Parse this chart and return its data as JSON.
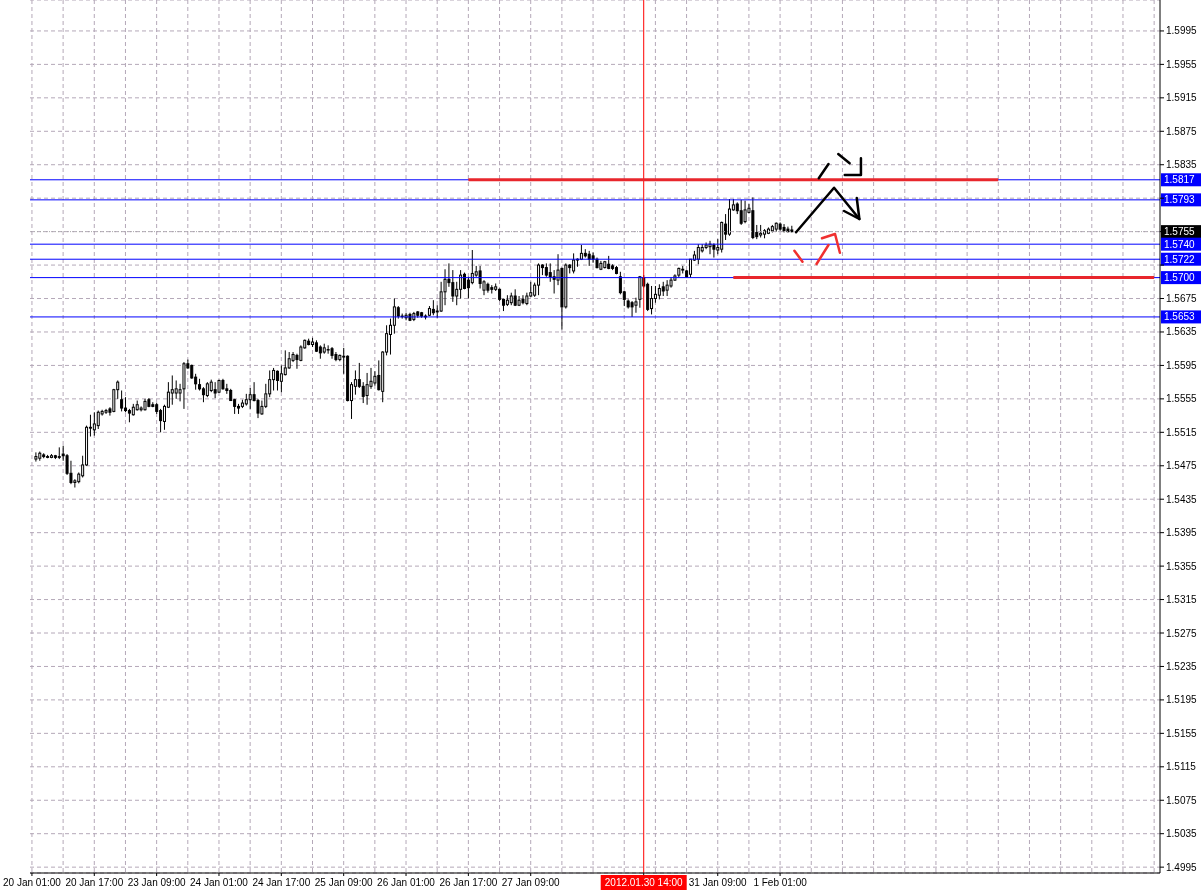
{
  "chart_data": {
    "type": "candlestick",
    "categories": [
      "20 Jan 01:00",
      null,
      null,
      null,
      null,
      null,
      null,
      null,
      null,
      null,
      null,
      null,
      null,
      null,
      null,
      null,
      "20 Jan 17:00",
      null,
      null,
      null,
      null,
      null,
      null,
      null,
      null,
      null,
      null,
      null,
      null,
      null,
      null,
      null,
      "23 Jan 09:00",
      null,
      null,
      null,
      null,
      null,
      null,
      null,
      null,
      null,
      null,
      null,
      null,
      null,
      null,
      null,
      "24 Jan 01:00",
      null,
      null,
      null,
      null,
      null,
      null,
      null,
      null,
      null,
      null,
      null,
      null,
      null,
      null,
      null,
      "24 Jan 17:00",
      null,
      null,
      null,
      null,
      null,
      null,
      null,
      null,
      null,
      null,
      null,
      null,
      null,
      null,
      null,
      "25 Jan 09:00",
      null,
      null,
      null,
      null,
      null,
      null,
      null,
      null,
      null,
      null,
      null,
      null,
      null,
      null,
      null,
      "26 Jan 01:00",
      null,
      null,
      null,
      null,
      null,
      null,
      null,
      null,
      null,
      null,
      null,
      null,
      null,
      null,
      null,
      "26 Jan 17:00",
      null,
      null,
      null,
      null,
      null,
      null,
      null,
      null,
      null,
      null,
      null,
      null,
      null,
      null,
      null,
      "27 Jan 09:00",
      null,
      null,
      null,
      null,
      null,
      null,
      null,
      null,
      null,
      null,
      null,
      null,
      null,
      null,
      null,
      null,
      null,
      null,
      null,
      null,
      null,
      null,
      null,
      null,
      null,
      null,
      null,
      null,
      "2012.01.30 14:00",
      null,
      null,
      null,
      null,
      null,
      null,
      null,
      null,
      null,
      null,
      null,
      null,
      null,
      null,
      null,
      null,
      null,
      null,
      "31 Jan 09:00",
      null,
      null,
      null,
      null,
      null,
      null,
      null,
      null,
      null,
      null,
      null,
      null,
      null,
      null,
      null,
      "1 Feb 01:00",
      null,
      null,
      null,
      null,
      null,
      null,
      null,
      null,
      null,
      null,
      null,
      null,
      null,
      null,
      null,
      null,
      null,
      null,
      null,
      null,
      null,
      null,
      null,
      null,
      null,
      null,
      null,
      null,
      null,
      null,
      null,
      null,
      null,
      null,
      null,
      null,
      null,
      null,
      null,
      null,
      null,
      null,
      null,
      null,
      null,
      null,
      null,
      null,
      null,
      null,
      null,
      null,
      null,
      null,
      null,
      null,
      null,
      null,
      null,
      null,
      null,
      null,
      null,
      null,
      null,
      null,
      null,
      null,
      null,
      null,
      null,
      null,
      null,
      null,
      null,
      null,
      null,
      null,
      null,
      null,
      null,
      null,
      null,
      null,
      null,
      null,
      null,
      null,
      null,
      null,
      null,
      null,
      null,
      null,
      null,
      null,
      null
    ],
    "ohlc": [
      null,
      [
        1.5483,
        1.5491,
        1.548,
        1.5486
      ],
      [
        1.5484,
        1.5492,
        1.5481,
        1.549
      ],
      [
        1.5488,
        1.549,
        1.5484,
        1.5486
      ],
      [
        1.5486,
        1.5488,
        1.5484,
        1.5485
      ],
      [
        1.5485,
        1.5489,
        1.5484,
        1.5487
      ],
      [
        1.5487,
        1.5488,
        1.5483,
        1.5485
      ],
      [
        1.5485,
        1.5497,
        1.5483,
        1.5486
      ],
      [
        1.5489,
        1.5499,
        1.5481,
        1.5487
      ],
      [
        1.5487,
        1.5489,
        1.5464,
        1.5466
      ],
      [
        1.5466,
        1.5481,
        1.5453,
        1.5455
      ],
      [
        1.5455,
        1.5459,
        1.5449,
        1.5457
      ],
      [
        1.5456,
        1.5467,
        1.5454,
        1.5465
      ],
      [
        1.5463,
        1.5487,
        1.5461,
        1.5476
      ],
      [
        1.5476,
        1.5523,
        1.5475,
        1.5521
      ],
      [
        1.5521,
        1.5536,
        1.551,
        1.552
      ],
      [
        1.5518,
        1.5539,
        1.5511,
        1.5525
      ],
      [
        1.5523,
        1.5541,
        1.5519,
        1.5539
      ],
      [
        1.5537,
        1.5542,
        1.5535,
        1.554
      ],
      [
        1.5539,
        1.5543,
        1.5537,
        1.5541
      ],
      [
        1.5543,
        1.5545,
        1.5535,
        1.5539
      ],
      [
        1.554,
        1.5567,
        1.5539,
        1.5566
      ],
      [
        1.5566,
        1.5577,
        1.5555,
        1.5575
      ],
      [
        1.5554,
        1.5565,
        1.554,
        1.5544
      ],
      [
        1.5544,
        1.5557,
        1.5539,
        1.5541
      ],
      [
        1.5541,
        1.5543,
        1.5527,
        1.5538
      ],
      [
        1.5536,
        1.5549,
        1.5535,
        1.5545
      ],
      [
        1.5542,
        1.5553,
        1.5541,
        1.5548
      ],
      [
        1.5542,
        1.5546,
        1.554,
        1.5544
      ],
      [
        1.5542,
        1.5555,
        1.5541,
        1.5552
      ],
      [
        1.5554,
        1.5556,
        1.5545,
        1.5546
      ],
      [
        1.5548,
        1.5551,
        1.5545,
        1.5546
      ],
      [
        1.5548,
        1.555,
        1.5537,
        1.554
      ],
      [
        1.5541,
        1.5543,
        1.5515,
        1.5529
      ],
      [
        1.5528,
        1.5548,
        1.5518,
        1.5546
      ],
      [
        1.5545,
        1.5575,
        1.5544,
        1.5563
      ],
      [
        1.5562,
        1.5583,
        1.5548,
        1.5566
      ],
      [
        1.5562,
        1.5577,
        1.5555,
        1.5567
      ],
      [
        1.5562,
        1.5573,
        1.5552,
        1.5566
      ],
      [
        1.5567,
        1.5599,
        1.5543,
        1.5597
      ],
      [
        1.5597,
        1.5602,
        1.5591,
        1.5592
      ],
      [
        1.5595,
        1.5596,
        1.5579,
        1.558
      ],
      [
        1.5581,
        1.5585,
        1.5566,
        1.5573
      ],
      [
        1.5572,
        1.5579,
        1.5565,
        1.5567
      ],
      [
        1.5567,
        1.5569,
        1.5551,
        1.556
      ],
      [
        1.5559,
        1.5575,
        1.5557,
        1.5573
      ],
      [
        1.5565,
        1.5578,
        1.5563,
        1.5575
      ],
      [
        1.5566,
        1.5575,
        1.5556,
        1.5562
      ],
      [
        1.5563,
        1.5578,
        1.5562,
        1.5577
      ],
      [
        1.5577,
        1.5579,
        1.5566,
        1.5567
      ],
      [
        1.5567,
        1.5573,
        1.5561,
        1.5565
      ],
      [
        1.5565,
        1.5567,
        1.5553,
        1.5553
      ],
      [
        1.5554,
        1.5555,
        1.5537,
        1.5546
      ],
      [
        1.5546,
        1.5549,
        1.5537,
        1.5544
      ],
      [
        1.5546,
        1.5554,
        1.5544,
        1.555
      ],
      [
        1.5549,
        1.5561,
        1.5547,
        1.5554
      ],
      [
        1.5554,
        1.5568,
        1.5543,
        1.556
      ],
      [
        1.556,
        1.5575,
        1.5552,
        1.5553
      ],
      [
        1.5553,
        1.5555,
        1.5532,
        1.5538
      ],
      [
        1.5537,
        1.5553,
        1.5536,
        1.5546
      ],
      [
        1.5546,
        1.5573,
        1.5544,
        1.5561
      ],
      [
        1.5561,
        1.5589,
        1.5557,
        1.5578
      ],
      [
        1.5578,
        1.5592,
        1.5565,
        1.5589
      ],
      [
        1.5588,
        1.5589,
        1.5565,
        1.5577
      ],
      [
        1.5576,
        1.5595,
        1.5563,
        1.5585
      ],
      [
        1.5584,
        1.5613,
        1.5583,
        1.5592
      ],
      [
        1.5592,
        1.5611,
        1.5591,
        1.5603
      ],
      [
        1.5601,
        1.5611,
        1.5599,
        1.5608
      ],
      [
        1.5607,
        1.5609,
        1.5591,
        1.5602
      ],
      [
        1.5601,
        1.5619,
        1.56,
        1.5617
      ],
      [
        1.5616,
        1.5626,
        1.5615,
        1.5625
      ],
      [
        1.5624,
        1.5627,
        1.5619,
        1.562
      ],
      [
        1.562,
        1.5628,
        1.5617,
        1.5623
      ],
      [
        1.5622,
        1.5625,
        1.5611,
        1.5612
      ],
      [
        1.5617,
        1.5619,
        1.5603,
        1.561
      ],
      [
        1.5611,
        1.5621,
        1.5609,
        1.5616
      ],
      [
        1.5614,
        1.5619,
        1.5609,
        1.5614
      ],
      [
        1.5615,
        1.5617,
        1.5603,
        1.5607
      ],
      [
        1.5608,
        1.5611,
        1.56,
        1.5602
      ],
      [
        1.5602,
        1.5608,
        1.56,
        1.5607
      ],
      [
        1.5606,
        1.5616,
        1.5585,
        1.5605
      ],
      [
        1.5606,
        1.5607,
        1.5552,
        1.5553
      ],
      [
        1.5553,
        1.5575,
        1.5531,
        1.5572
      ],
      [
        1.557,
        1.5589,
        1.556,
        1.5578
      ],
      [
        1.5578,
        1.5598,
        1.5568,
        1.557
      ],
      [
        1.557,
        1.5575,
        1.555,
        1.5558
      ],
      [
        1.5559,
        1.5586,
        1.5548,
        1.5572
      ],
      [
        1.557,
        1.5592,
        1.5567,
        1.5576
      ],
      [
        1.5574,
        1.5588,
        1.5571,
        1.5582
      ],
      [
        1.5583,
        1.5601,
        1.5565,
        1.5566
      ],
      [
        1.5564,
        1.5612,
        1.5551,
        1.5611
      ],
      [
        1.5611,
        1.5643,
        1.5607,
        1.5633
      ],
      [
        1.5632,
        1.5651,
        1.5608,
        1.5643
      ],
      [
        1.5643,
        1.5675,
        1.5633,
        1.5665
      ],
      [
        1.5664,
        1.5666,
        1.5651,
        1.5654
      ],
      [
        1.5654,
        1.5657,
        1.5651,
        1.5654
      ],
      [
        1.5652,
        1.5658,
        1.5649,
        1.5655
      ],
      [
        1.5656,
        1.5658,
        1.5648,
        1.5649
      ],
      [
        1.565,
        1.5659,
        1.5648,
        1.5657
      ],
      [
        1.5659,
        1.566,
        1.5652,
        1.5655
      ],
      [
        1.5658,
        1.5659,
        1.5652,
        1.5654
      ],
      [
        1.5654,
        1.5656,
        1.565,
        1.5653
      ],
      [
        1.5655,
        1.5666,
        1.5654,
        1.5663
      ],
      [
        1.5662,
        1.5673,
        1.5655,
        1.5658
      ],
      [
        1.5659,
        1.5667,
        1.5652,
        1.566
      ],
      [
        1.566,
        1.5695,
        1.5659,
        1.5683
      ],
      [
        1.5683,
        1.571,
        1.5667,
        1.5698
      ],
      [
        1.5698,
        1.5717,
        1.5689,
        1.5694
      ],
      [
        1.5694,
        1.5709,
        1.5671,
        1.5678
      ],
      [
        1.5678,
        1.5695,
        1.5667,
        1.5686
      ],
      [
        1.5686,
        1.5709,
        1.5675,
        1.5703
      ],
      [
        1.5704,
        1.5706,
        1.5686,
        1.5687
      ],
      [
        1.5697,
        1.5701,
        1.5675,
        1.5688
      ],
      [
        1.5694,
        1.5733,
        1.5692,
        1.5705
      ],
      [
        1.5703,
        1.5714,
        1.5701,
        1.5707
      ],
      [
        1.5708,
        1.5714,
        1.5687,
        1.5693
      ],
      [
        1.5685,
        1.5697,
        1.5679,
        1.5695
      ],
      [
        1.5692,
        1.5694,
        1.5682,
        1.5685
      ],
      [
        1.5688,
        1.5691,
        1.5681,
        1.5686
      ],
      [
        1.5686,
        1.5693,
        1.5684,
        1.5689
      ],
      [
        1.5686,
        1.5687,
        1.5672,
        1.5674
      ],
      [
        1.5674,
        1.5675,
        1.566,
        1.5667
      ],
      [
        1.5668,
        1.5679,
        1.5666,
        1.5673
      ],
      [
        1.567,
        1.5682,
        1.5667,
        1.5678
      ],
      [
        1.5678,
        1.5686,
        1.5666,
        1.5667
      ],
      [
        1.5667,
        1.5678,
        1.5666,
        1.5673
      ],
      [
        1.5674,
        1.5679,
        1.5668,
        1.567
      ],
      [
        1.5669,
        1.5682,
        1.5667,
        1.5678
      ],
      [
        1.5678,
        1.5695,
        1.5677,
        1.5682
      ],
      [
        1.5679,
        1.5694,
        1.5677,
        1.5691
      ],
      [
        1.5691,
        1.5717,
        1.5679,
        1.5715
      ],
      [
        1.5715,
        1.5716,
        1.5703,
        1.5712
      ],
      [
        1.5712,
        1.5717,
        1.5701,
        1.5703
      ],
      [
        1.5706,
        1.5717,
        1.5695,
        1.5701
      ],
      [
        1.5701,
        1.5709,
        1.5681,
        1.5698
      ],
      [
        1.5697,
        1.5728,
        1.5691,
        1.5709
      ],
      [
        1.5711,
        1.5712,
        1.5638,
        1.5665
      ],
      [
        1.5665,
        1.5717,
        1.5663,
        1.5715
      ],
      [
        1.5715,
        1.5716,
        1.5705,
        1.5712
      ],
      [
        1.5708,
        1.5729,
        1.5705,
        1.5721
      ],
      [
        1.5721,
        1.5723,
        1.5713,
        1.5722
      ],
      [
        1.5722,
        1.5739,
        1.5721,
        1.5729
      ],
      [
        1.5729,
        1.5734,
        1.5724,
        1.5726
      ],
      [
        1.5728,
        1.5732,
        1.5714,
        1.5722
      ],
      [
        1.5726,
        1.573,
        1.5718,
        1.5722
      ],
      [
        1.5722,
        1.5724,
        1.5711,
        1.5712
      ],
      [
        1.571,
        1.572,
        1.5709,
        1.5717
      ],
      [
        1.5712,
        1.572,
        1.5711,
        1.5719
      ],
      [
        1.5716,
        1.5726,
        1.571,
        1.5711
      ],
      [
        1.5714,
        1.5716,
        1.5709,
        1.5711
      ],
      [
        1.5712,
        1.5714,
        1.5704,
        1.5705
      ],
      [
        1.5701,
        1.5707,
        1.568,
        1.5682
      ],
      [
        1.5683,
        1.5684,
        1.5666,
        1.5674
      ],
      [
        1.5672,
        1.5674,
        1.5663,
        1.5665
      ],
      [
        1.567,
        1.5672,
        1.5653,
        1.5665
      ],
      [
        1.5667,
        1.5676,
        1.5658,
        1.5671
      ],
      [
        1.5674,
        1.5702,
        1.5664,
        1.5701
      ],
      [
        1.57,
        1.5703,
        1.5688,
        1.569
      ],
      [
        1.5692,
        1.5694,
        1.566,
        1.5662
      ],
      [
        1.5663,
        1.569,
        1.5656,
        1.5675
      ],
      [
        1.5675,
        1.569,
        1.567,
        1.568
      ],
      [
        1.5679,
        1.5692,
        1.5674,
        1.5687
      ],
      [
        1.5689,
        1.5695,
        1.5678,
        1.5684
      ],
      [
        1.5685,
        1.5697,
        1.5678,
        1.5691
      ],
      [
        1.569,
        1.57,
        1.5688,
        1.5697
      ],
      [
        1.5697,
        1.5704,
        1.5696,
        1.5702
      ],
      [
        1.5703,
        1.5712,
        1.57,
        1.5711
      ],
      [
        1.5709,
        1.5714,
        1.5705,
        1.571
      ],
      [
        1.5708,
        1.5709,
        1.57,
        1.5701
      ],
      [
        1.5704,
        1.5722,
        1.57,
        1.5722
      ],
      [
        1.5721,
        1.5732,
        1.572,
        1.5727
      ],
      [
        1.5722,
        1.574,
        1.5716,
        1.5736
      ],
      [
        1.5732,
        1.574,
        1.573,
        1.5736
      ],
      [
        1.5736,
        1.5742,
        1.5734,
        1.5739
      ],
      [
        1.5737,
        1.5744,
        1.5728,
        1.574
      ],
      [
        1.5739,
        1.5741,
        1.5724,
        1.5734
      ],
      [
        1.5733,
        1.5746,
        1.5728,
        1.5736
      ],
      [
        1.5734,
        1.5767,
        1.573,
        1.5766
      ],
      [
        1.5764,
        1.5776,
        1.5745,
        1.5752
      ],
      [
        1.5752,
        1.5794,
        1.575,
        1.5782
      ],
      [
        1.5781,
        1.5794,
        1.578,
        1.5787
      ],
      [
        1.5788,
        1.579,
        1.5776,
        1.578
      ],
      [
        1.578,
        1.5793,
        1.5763,
        1.5765
      ],
      [
        1.5767,
        1.5792,
        1.5765,
        1.5781
      ],
      [
        1.5778,
        1.5788,
        1.5777,
        1.5783
      ],
      [
        1.578,
        1.5796,
        1.5746,
        1.5748
      ],
      [
        1.5754,
        1.5763,
        1.5746,
        1.5749
      ],
      [
        1.5751,
        1.5763,
        1.5748,
        1.5753
      ],
      [
        1.5752,
        1.5758,
        1.5747,
        1.5756
      ],
      [
        1.5753,
        1.576,
        1.5752,
        1.5758
      ],
      [
        1.5756,
        1.5763,
        1.5754,
        1.5761
      ],
      [
        1.5758,
        1.5766,
        1.5755,
        1.5765
      ],
      [
        1.5764,
        1.5766,
        1.5756,
        1.5758
      ],
      [
        1.576,
        1.5764,
        1.5754,
        1.5756
      ],
      [
        1.5758,
        1.5761,
        1.5754,
        1.5755
      ],
      [
        1.5757,
        1.5762,
        1.5754,
        1.5755
      ],
      null,
      null,
      null,
      null,
      null,
      null,
      null,
      null,
      null,
      null,
      null,
      null,
      null,
      null,
      null,
      null,
      null,
      null,
      null,
      null,
      null,
      null,
      null,
      null,
      null,
      null,
      null,
      null,
      null,
      null,
      null,
      null,
      null,
      null,
      null,
      null,
      null,
      null,
      null,
      null,
      null,
      null,
      null,
      null,
      null,
      null,
      null,
      null,
      null,
      null,
      null,
      null,
      null,
      null,
      null,
      null,
      null,
      null,
      null,
      null,
      null,
      null,
      null,
      null,
      null,
      null,
      null,
      null,
      null,
      null,
      null,
      null,
      null,
      null,
      null,
      null,
      null,
      null,
      null,
      null,
      null,
      null,
      null,
      null,
      null,
      null,
      null,
      null,
      null,
      null,
      null,
      null,
      null,
      null
    ],
    "series": [
      {
        "type": "line",
        "color": "#e8262c",
        "values": [
          null,
          null,
          null,
          null,
          null,
          null,
          null,
          null,
          null,
          null,
          null,
          null,
          null,
          null,
          null,
          null,
          null,
          null,
          null,
          null,
          null,
          null,
          null,
          null,
          null,
          null,
          null,
          null,
          null,
          null,
          null,
          null,
          null,
          null,
          null,
          null,
          null,
          null,
          null,
          null,
          null,
          null,
          null,
          null,
          null,
          null,
          null,
          null,
          null,
          null,
          null,
          null,
          null,
          null,
          null,
          null,
          null,
          null,
          null,
          null,
          null,
          null,
          null,
          null,
          null,
          null,
          null,
          null,
          null,
          null,
          null,
          null,
          null,
          null,
          null,
          null,
          null,
          null,
          null,
          null,
          null,
          null,
          null,
          null,
          null,
          null,
          null,
          null,
          null,
          null,
          null,
          null,
          null,
          null,
          null,
          null,
          null,
          null,
          null,
          null,
          null,
          null,
          null,
          null,
          null,
          null,
          null,
          null,
          null,
          null,
          null,
          null,
          1.5817,
          1.5817,
          1.5817,
          1.5817,
          1.5817,
          1.5817,
          1.5817,
          1.5817,
          1.5817,
          1.5817,
          1.5817,
          1.5817,
          1.5817,
          1.5817,
          1.5817,
          1.5817,
          1.5817,
          1.5817,
          1.5817,
          1.5817,
          1.5817,
          1.5817,
          1.5817,
          1.5817,
          1.5817,
          1.5817,
          1.5817,
          1.5817,
          1.5817,
          1.5817,
          1.5817,
          1.5817,
          1.5817,
          1.5817,
          1.5817,
          1.5817,
          1.5817,
          1.5817,
          1.5817,
          1.5817,
          1.5817,
          1.5817,
          1.5817,
          1.5817,
          1.5817,
          1.5817,
          1.5817,
          1.5817,
          1.5817,
          1.5817,
          1.5817,
          1.5817,
          1.5817,
          1.5817,
          1.5817,
          1.5817,
          1.5817,
          1.5817,
          1.5817,
          1.5817,
          1.5817,
          1.5817,
          1.5817,
          1.5817,
          1.5817,
          1.5817,
          1.5817,
          1.5817,
          1.5817,
          1.5817,
          1.5817,
          1.5817,
          1.5817,
          1.5817,
          1.5817,
          1.5817,
          1.5817,
          1.5817,
          1.5817,
          1.5817,
          1.5817,
          1.5817,
          1.5817,
          1.5817,
          1.5817,
          1.5817,
          1.5817,
          1.5817,
          1.5817,
          1.5817,
          1.5817,
          1.5817,
          1.5817,
          1.5817,
          1.5817,
          1.5817,
          1.5817,
          1.5817,
          1.5817,
          1.5817,
          1.5817,
          1.5817,
          1.5817,
          1.5817,
          1.5817,
          1.5817,
          1.5817,
          1.5817,
          1.5817,
          1.5817,
          1.5817,
          1.5817,
          1.5817,
          1.5817,
          1.5817,
          1.5817,
          1.5817,
          1.5817,
          1.5817,
          1.5817,
          1.5817,
          1.5817,
          1.5817,
          1.5817,
          1.5817,
          1.5817,
          1.5817,
          1.5817,
          1.5817,
          1.5817,
          1.5817,
          1.5817,
          1.5817,
          1.5817,
          1.5817,
          1.5817,
          1.5817,
          null,
          null,
          null,
          null,
          null,
          null,
          null,
          null,
          null,
          null,
          null,
          null,
          null,
          null,
          null,
          null,
          null,
          null,
          null,
          null,
          null,
          null,
          null,
          null,
          null,
          null,
          null,
          null,
          null,
          null,
          null,
          null,
          null,
          null,
          null,
          null,
          null,
          null,
          null,
          null,
          null
        ]
      },
      {
        "type": "line",
        "color": "#e8262c",
        "values": [
          null,
          null,
          null,
          null,
          null,
          null,
          null,
          null,
          null,
          null,
          null,
          null,
          null,
          null,
          null,
          null,
          null,
          null,
          null,
          null,
          null,
          null,
          null,
          null,
          null,
          null,
          null,
          null,
          null,
          null,
          null,
          null,
          null,
          null,
          null,
          null,
          null,
          null,
          null,
          null,
          null,
          null,
          null,
          null,
          null,
          null,
          null,
          null,
          null,
          null,
          null,
          null,
          null,
          null,
          null,
          null,
          null,
          null,
          null,
          null,
          null,
          null,
          null,
          null,
          null,
          null,
          null,
          null,
          null,
          null,
          null,
          null,
          null,
          null,
          null,
          null,
          null,
          null,
          null,
          null,
          null,
          null,
          null,
          null,
          null,
          null,
          null,
          null,
          null,
          null,
          null,
          null,
          null,
          null,
          null,
          null,
          null,
          null,
          null,
          null,
          null,
          null,
          null,
          null,
          null,
          null,
          null,
          null,
          null,
          null,
          null,
          null,
          null,
          null,
          null,
          null,
          null,
          null,
          null,
          null,
          null,
          null,
          null,
          null,
          null,
          null,
          null,
          null,
          null,
          null,
          null,
          null,
          null,
          null,
          null,
          null,
          null,
          null,
          null,
          null,
          null,
          null,
          null,
          null,
          null,
          null,
          null,
          null,
          null,
          null,
          null,
          null,
          null,
          null,
          null,
          null,
          null,
          null,
          null,
          null,
          null,
          null,
          null,
          null,
          null,
          null,
          null,
          null,
          null,
          null,
          null,
          null,
          null,
          null,
          null,
          null,
          null,
          null,
          null,
          null,
          1.57,
          1.57,
          1.57,
          1.57,
          1.57,
          1.57,
          1.57,
          1.57,
          1.57,
          1.57,
          1.57,
          1.57,
          1.57,
          1.57,
          1.57,
          1.57,
          1.57,
          1.57,
          1.57,
          1.57,
          1.57,
          1.57,
          1.57,
          1.57,
          1.57,
          1.57,
          1.57,
          1.57,
          1.57,
          1.57,
          1.57,
          1.57,
          1.57,
          1.57,
          1.57,
          1.57,
          1.57,
          1.57,
          1.57,
          1.57,
          1.57,
          1.57,
          1.57,
          1.57,
          1.57,
          1.57,
          1.57,
          1.57,
          1.57,
          1.57,
          1.57,
          1.57,
          1.57,
          1.57,
          1.57,
          1.57,
          1.57,
          1.57,
          1.57,
          1.57,
          1.57,
          1.57,
          1.57,
          1.57,
          1.57,
          1.57,
          1.57,
          1.57,
          1.57,
          1.57,
          1.57,
          1.57,
          1.57,
          1.57,
          1.57,
          1.57,
          1.57,
          1.57,
          1.57,
          1.57,
          1.57,
          1.57,
          1.57,
          1.57,
          1.57,
          1.57,
          1.57,
          1.57,
          1.57,
          1.57,
          1.57,
          1.57,
          1.57,
          1.57,
          1.57,
          1.57,
          1.57,
          1.57,
          1.57,
          1.57,
          1.57,
          1.57,
          1.57,
          1.57,
          1.57,
          1.57,
          1.57,
          1.57,
          1.57,
          null
        ]
      }
    ],
    "ylim": [
      1.4988,
      1.6032
    ],
    "yticks": [
      1.4995,
      1.5035,
      1.5075,
      1.5115,
      1.5155,
      1.5195,
      1.5235,
      1.5275,
      1.5315,
      1.5355,
      1.5395,
      1.5435,
      1.5475,
      1.5515,
      1.5555,
      1.5595,
      1.5635,
      1.5675,
      {
        "value": 1.5715,
        "label": null
      },
      {
        "value": 1.5755,
        "label": null
      },
      {
        "value": 1.5795,
        "label": null
      },
      1.5835,
      1.5875,
      1.5915,
      1.5955,
      1.5995
    ],
    "ref_lines": [
      {
        "axis": "y",
        "value": 1.5817,
        "label": "1.5817",
        "color": "#0000ff"
      },
      {
        "axis": "y",
        "value": 1.5793,
        "label": "1.5793",
        "color": "#0000ff"
      },
      {
        "axis": "y",
        "value": 1.5755,
        "label": "1.5755",
        "color": "#a8a8a8",
        "line_style": "dotted"
      },
      {
        "axis": "y",
        "value": 1.574,
        "label": "1.5740",
        "color": "#0000ff"
      },
      {
        "axis": "y",
        "value": 1.5722,
        "label": "1.5722",
        "color": "#0000ff"
      },
      {
        "axis": "y",
        "value": 1.57,
        "label": "1.5700",
        "color": "#0000ff"
      },
      {
        "axis": "y",
        "value": 1.5653,
        "label": "1.5653",
        "color": "#0000ff"
      },
      {
        "axis": "x",
        "value": "2012.01.30 14:00",
        "color": "#ff0000"
      }
    ],
    "grid": true
  }
}
